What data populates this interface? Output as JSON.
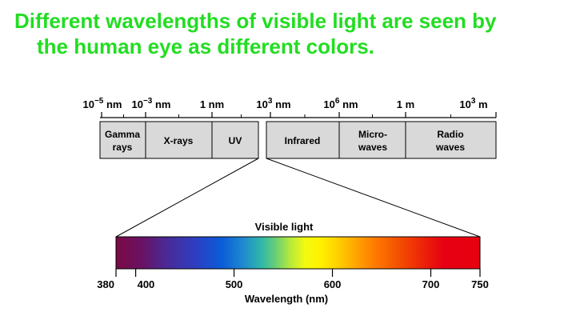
{
  "title": {
    "line1": "Different wavelengths of visible light are seen by",
    "line2": "the human eye as different colors."
  },
  "spectrum": {
    "scale_ticks": [
      {
        "base": "10",
        "exp": "−5",
        "unit": " nm"
      },
      {
        "base": "10",
        "exp": "−3",
        "unit": " nm"
      },
      {
        "base": "1",
        "exp": "",
        "unit": " nm"
      },
      {
        "base": "10",
        "exp": "3",
        "unit": " nm"
      },
      {
        "base": "10",
        "exp": "6",
        "unit": " nm"
      },
      {
        "base": "1",
        "exp": "",
        "unit": " m"
      },
      {
        "base": "10",
        "exp": "3",
        "unit": " m"
      }
    ],
    "bands": [
      {
        "line1": "Gamma",
        "line2": "rays"
      },
      {
        "line1": "X-rays",
        "line2": ""
      },
      {
        "line1": "UV",
        "line2": ""
      },
      {
        "line1": "Infrared",
        "line2": ""
      },
      {
        "line1": "Micro-",
        "line2": "waves"
      },
      {
        "line1": "Radio",
        "line2": "waves"
      }
    ],
    "band_fill": "#d9d9d9"
  },
  "visible": {
    "label": "Visible light",
    "axis_label": "Wavelength (nm)",
    "range": [
      380,
      750
    ],
    "ticks": [
      "380",
      "400",
      "500",
      "600",
      "700",
      "750"
    ],
    "tick_values": [
      380,
      400,
      500,
      600,
      700,
      750
    ]
  }
}
